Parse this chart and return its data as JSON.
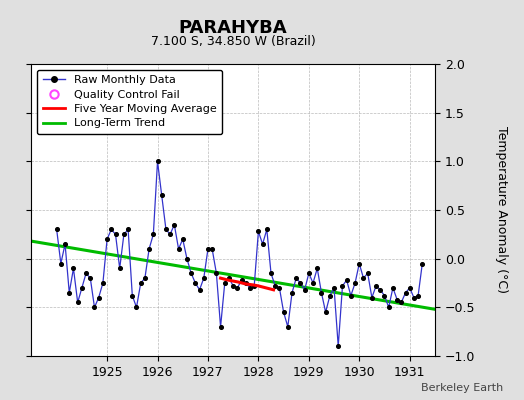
{
  "title": "PARAHYBA",
  "subtitle": "7.100 S, 34.850 W (Brazil)",
  "ylabel": "Temperature Anomaly (°C)",
  "watermark": "Berkeley Earth",
  "ylim": [
    -1,
    2
  ],
  "yticks": [
    -1,
    -0.5,
    0,
    0.5,
    1,
    1.5,
    2
  ],
  "xlim": [
    1923.5,
    1931.5
  ],
  "xticks": [
    1925,
    1926,
    1927,
    1928,
    1929,
    1930,
    1931
  ],
  "bg_color": "#e0e0e0",
  "plot_bg_color": "#ffffff",
  "raw_color": "#3333cc",
  "dot_color": "#000000",
  "ma_color": "#ff0000",
  "trend_color": "#00bb00",
  "qc_color": "#ff44ff",
  "raw_x": [
    1924.0,
    1924.083,
    1924.167,
    1924.25,
    1924.333,
    1924.417,
    1924.5,
    1924.583,
    1924.667,
    1924.75,
    1924.833,
    1924.917,
    1925.0,
    1925.083,
    1925.167,
    1925.25,
    1925.333,
    1925.417,
    1925.5,
    1925.583,
    1925.667,
    1925.75,
    1925.833,
    1925.917,
    1926.0,
    1926.083,
    1926.167,
    1926.25,
    1926.333,
    1926.417,
    1926.5,
    1926.583,
    1926.667,
    1926.75,
    1926.833,
    1926.917,
    1927.0,
    1927.083,
    1927.167,
    1927.25,
    1927.333,
    1927.417,
    1927.5,
    1927.583,
    1927.667,
    1927.75,
    1927.833,
    1927.917,
    1928.0,
    1928.083,
    1928.167,
    1928.25,
    1928.333,
    1928.417,
    1928.5,
    1928.583,
    1928.667,
    1928.75,
    1928.833,
    1928.917,
    1929.0,
    1929.083,
    1929.167,
    1929.25,
    1929.333,
    1929.417,
    1929.5,
    1929.583,
    1929.667,
    1929.75,
    1929.833,
    1929.917,
    1930.0,
    1930.083,
    1930.167,
    1930.25,
    1930.333,
    1930.417,
    1930.5,
    1930.583,
    1930.667,
    1930.75,
    1930.833,
    1930.917,
    1931.0,
    1931.083,
    1931.167,
    1931.25
  ],
  "raw_y": [
    0.3,
    -0.05,
    0.15,
    -0.35,
    -0.1,
    -0.45,
    -0.3,
    -0.15,
    -0.2,
    -0.5,
    -0.4,
    -0.25,
    0.2,
    0.3,
    0.25,
    -0.1,
    0.25,
    0.3,
    -0.38,
    -0.5,
    -0.25,
    -0.2,
    0.1,
    0.25,
    1.0,
    0.65,
    0.3,
    0.25,
    0.35,
    0.1,
    0.2,
    0.0,
    -0.15,
    -0.25,
    -0.32,
    -0.2,
    0.1,
    0.1,
    -0.15,
    -0.7,
    -0.25,
    -0.2,
    -0.28,
    -0.3,
    -0.22,
    -0.25,
    -0.3,
    -0.28,
    0.28,
    0.15,
    0.3,
    -0.15,
    -0.28,
    -0.3,
    -0.55,
    -0.7,
    -0.35,
    -0.2,
    -0.25,
    -0.32,
    -0.15,
    -0.25,
    -0.1,
    -0.35,
    -0.55,
    -0.38,
    -0.3,
    -0.9,
    -0.28,
    -0.22,
    -0.38,
    -0.25,
    -0.05,
    -0.2,
    -0.15,
    -0.4,
    -0.28,
    -0.32,
    -0.38,
    -0.5,
    -0.3,
    -0.42,
    -0.45,
    -0.35,
    -0.3,
    -0.4,
    -0.38,
    -0.05
  ],
  "ma_x": [
    1927.25,
    1927.4,
    1927.6,
    1927.75,
    1927.9,
    1928.0,
    1928.15,
    1928.3
  ],
  "ma_y": [
    -0.2,
    -0.22,
    -0.24,
    -0.26,
    -0.27,
    -0.28,
    -0.3,
    -0.32
  ],
  "trend_x": [
    1923.5,
    1931.5
  ],
  "trend_y": [
    0.18,
    -0.52
  ]
}
